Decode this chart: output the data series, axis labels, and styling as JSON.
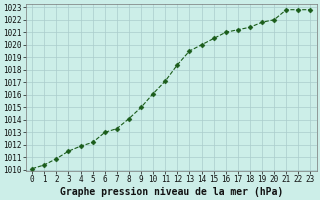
{
  "x": [
    0,
    1,
    2,
    3,
    4,
    5,
    6,
    7,
    8,
    9,
    10,
    11,
    12,
    13,
    14,
    15,
    16,
    17,
    18,
    19,
    20,
    21,
    22,
    23
  ],
  "y": [
    1010.1,
    1010.4,
    1010.9,
    1011.5,
    1011.9,
    1012.2,
    1013.0,
    1013.3,
    1014.1,
    1015.0,
    1016.1,
    1017.1,
    1018.4,
    1019.5,
    1020.0,
    1020.5,
    1021.0,
    1021.2,
    1021.4,
    1021.8,
    1022.0,
    1022.8,
    1022.8,
    1022.8
  ],
  "ylim": [
    1010,
    1023
  ],
  "xlim": [
    -0.5,
    23.5
  ],
  "yticks": [
    1010,
    1011,
    1012,
    1013,
    1014,
    1015,
    1016,
    1017,
    1018,
    1019,
    1020,
    1021,
    1022,
    1023
  ],
  "xticks": [
    0,
    1,
    2,
    3,
    4,
    5,
    6,
    7,
    8,
    9,
    10,
    11,
    12,
    13,
    14,
    15,
    16,
    17,
    18,
    19,
    20,
    21,
    22,
    23
  ],
  "line_color": "#1a5c1a",
  "marker": "D",
  "marker_size": 2.5,
  "bg_color": "#cceee8",
  "grid_color": "#aacccc",
  "xlabel": "Graphe pression niveau de la mer (hPa)",
  "tick_fontsize": 5.5,
  "label_fontsize": 7
}
